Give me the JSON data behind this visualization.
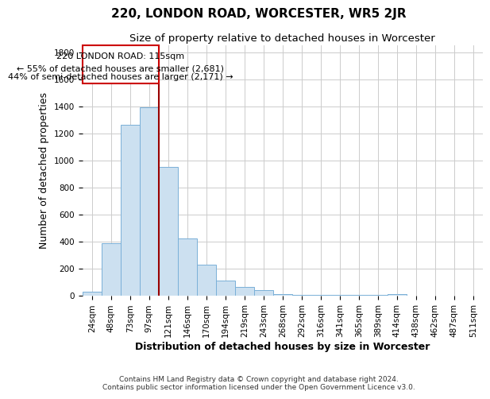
{
  "title": "220, LONDON ROAD, WORCESTER, WR5 2JR",
  "subtitle": "Size of property relative to detached houses in Worcester",
  "xlabel": "Distribution of detached houses by size in Worcester",
  "ylabel": "Number of detached properties",
  "footnote1": "Contains HM Land Registry data © Crown copyright and database right 2024.",
  "footnote2": "Contains public sector information licensed under the Open Government Licence v3.0.",
  "annotation_line1": "220 LONDON ROAD: 115sqm",
  "annotation_line2": "← 55% of detached houses are smaller (2,681)",
  "annotation_line3": "44% of semi-detached houses are larger (2,171) →",
  "bar_color": "#cce0f0",
  "bar_edge_color": "#7ab0d8",
  "redline_color": "#990000",
  "annotation_box_edgecolor": "#cc0000",
  "background_color": "#ffffff",
  "grid_color": "#cccccc",
  "categories": [
    "24sqm",
    "48sqm",
    "73sqm",
    "97sqm",
    "121sqm",
    "146sqm",
    "170sqm",
    "194sqm",
    "219sqm",
    "243sqm",
    "268sqm",
    "292sqm",
    "316sqm",
    "341sqm",
    "365sqm",
    "389sqm",
    "414sqm",
    "438sqm",
    "462sqm",
    "487sqm",
    "511sqm"
  ],
  "values": [
    30,
    390,
    1260,
    1390,
    950,
    420,
    230,
    110,
    65,
    40,
    10,
    5,
    3,
    3,
    3,
    3,
    10,
    2,
    2,
    2,
    2
  ],
  "ylim": [
    0,
    1850
  ],
  "yticks": [
    0,
    200,
    400,
    600,
    800,
    1000,
    1200,
    1400,
    1600,
    1800
  ],
  "redline_bar_index": 4,
  "title_fontsize": 11,
  "subtitle_fontsize": 9.5,
  "axis_label_fontsize": 9,
  "tick_fontsize": 7.5,
  "footnote_fontsize": 6.5,
  "annotation_fontsize": 8
}
